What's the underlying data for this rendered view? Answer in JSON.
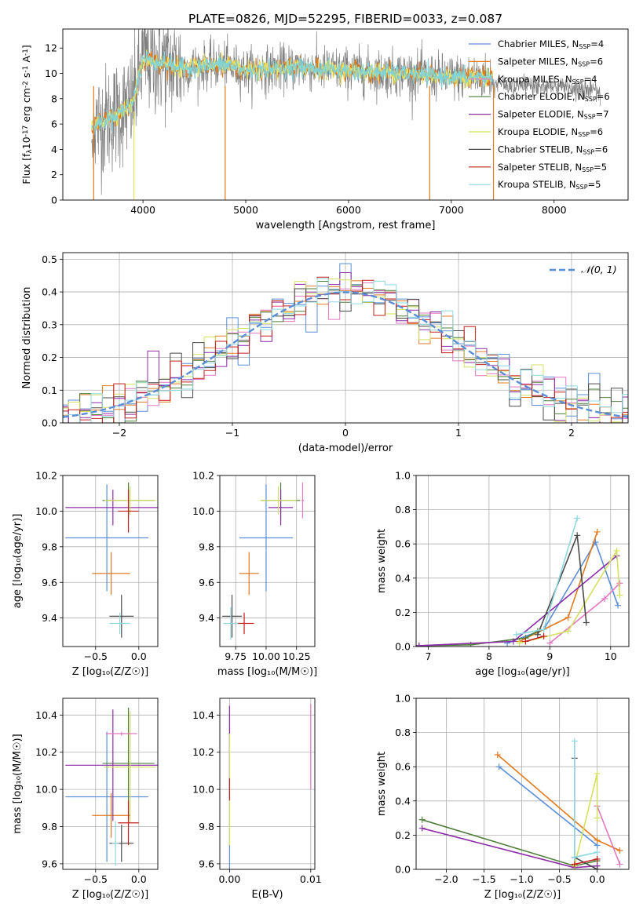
{
  "figure": {
    "title": "PLATE=0826, MJD=52295, FIBERID=0033, z=0.087"
  },
  "colors": {
    "observed": "#808080",
    "model_orange": "#e07b20",
    "model_cyan": "#7fd3d8",
    "model_yellow": "#e6e060",
    "gauss": "#5b8ed6"
  },
  "chart_data": [
    {
      "id": "spectrum",
      "type": "line",
      "title": "PLATE=0826, MJD=52295, FIBERID=0033, z=0.087",
      "xlabel": "wavelength [Angstrom, rest frame]",
      "ylabel_parts": [
        "Flux [f",
        "λ",
        "10",
        "-17",
        " erg cm",
        "-2",
        " s",
        "-1",
        " A",
        "-1",
        "]"
      ],
      "xlim": [
        3220,
        8720
      ],
      "ylim": [
        0,
        13.5
      ],
      "xticks": [
        4000,
        5000,
        6000,
        7000,
        8000
      ],
      "yticks": [
        0,
        2,
        4,
        6,
        8,
        10,
        12
      ],
      "legend_position": "upper-right",
      "legend": [
        {
          "label": "Chabrier MILES, N",
          "sub": "SSP",
          "tail": "=4",
          "color": "#5b8ed6"
        },
        {
          "label": "Salpeter MILES, N",
          "sub": "SSP",
          "tail": "=6",
          "color": "#e07b20"
        },
        {
          "label": "Kroupa MILES, N",
          "sub": "SSP",
          "tail": "=4",
          "color": "#e377c2"
        },
        {
          "label": "Chabrier ELODIE, N",
          "sub": "SSP",
          "tail": "=6",
          "color": "#4f7d3a"
        },
        {
          "label": "Salpeter ELODIE, N",
          "sub": "SSP",
          "tail": "=7",
          "color": "#8e2ca8"
        },
        {
          "label": "Kroupa ELODIE, N",
          "sub": "SSP",
          "tail": "=6",
          "color": "#d4e060"
        },
        {
          "label": "Chabrier STELIB, N",
          "sub": "SSP",
          "tail": "=6",
          "color": "#4a4a4a"
        },
        {
          "label": "Salpeter STELIB, N",
          "sub": "SSP",
          "tail": "=5",
          "color": "#c41e1e"
        },
        {
          "label": "Kroupa STELIB, N",
          "sub": "SSP",
          "tail": "=5",
          "color": "#8fd8e0"
        }
      ],
      "continuum_profile": {
        "wavelength": [
          3500,
          3700,
          3900,
          4000,
          4200,
          4400,
          4600,
          4800,
          5000,
          5200,
          5500,
          6000,
          6500,
          7000,
          7400
        ],
        "flux": [
          5.8,
          6.6,
          7.6,
          11.2,
          10.8,
          10.4,
          10.6,
          10.7,
          10.2,
          10.3,
          10.5,
          10.2,
          10.0,
          9.7,
          9.7
        ]
      },
      "model_extent": [
        3500,
        7400
      ],
      "observed_extent": [
        3500,
        8450
      ]
    },
    {
      "id": "residuals",
      "type": "histogram",
      "xlabel": "(data-model)/error",
      "ylabel": "Normed distribution",
      "xlim": [
        -2.5,
        2.5
      ],
      "ylim": [
        0,
        0.52
      ],
      "xticks": [
        -2,
        -1,
        0,
        1,
        2
      ],
      "xtick_labels": [
        "−2",
        "−1",
        "0",
        "1",
        "2"
      ],
      "yticks": [
        0.0,
        0.1,
        0.2,
        0.3,
        0.4,
        0.5
      ],
      "bin_width": 0.1,
      "legend_label": "𝒩(0, 1)",
      "legend_position": "upper-right"
    },
    {
      "id": "age-vs-Z",
      "type": "errorbar",
      "xlabel": "Z [log₁₀(Z/Z☉)]",
      "ylabel": "age  [log₁₀(age/yr)]",
      "xlim": [
        -0.88,
        0.22
      ],
      "ylim": [
        9.24,
        10.2
      ],
      "xticks": [
        -0.5,
        0.0
      ],
      "xtick_labels": [
        "−0.5",
        "0.0"
      ],
      "yticks": [
        9.4,
        9.6,
        9.8,
        10.0,
        10.2
      ],
      "points": [
        {
          "x": -0.37,
          "y": 9.85,
          "xerr": 0.48,
          "yerr": 0.3,
          "color": "#5b8ed6"
        },
        {
          "x": -0.32,
          "y": 9.65,
          "xerr": 0.22,
          "yerr": 0.12,
          "color": "#e07b20"
        },
        {
          "x": -0.12,
          "y": 10.06,
          "xerr": 0.3,
          "yerr": 0.1,
          "color": "#4f7d3a"
        },
        {
          "x": -0.3,
          "y": 10.02,
          "xerr": 0.55,
          "yerr": 0.1,
          "color": "#8e2ca8"
        },
        {
          "x": -0.1,
          "y": 10.06,
          "xerr": 0.3,
          "yerr": 0.08,
          "color": "#d4e060"
        },
        {
          "x": -0.2,
          "y": 9.41,
          "xerr": 0.14,
          "yerr": 0.12,
          "color": "#4a4a4a"
        },
        {
          "x": -0.12,
          "y": 10.0,
          "xerr": 0.12,
          "yerr": 0.12,
          "color": "#c41e1e"
        },
        {
          "x": -0.22,
          "y": 9.37,
          "xerr": 0.12,
          "yerr": 0.06,
          "color": "#8fd8e0"
        }
      ]
    },
    {
      "id": "age-vs-mass",
      "type": "errorbar",
      "xlabel": "mass [log₁₀(M/M☉)]",
      "ylabel": "",
      "xlim": [
        9.62,
        10.4
      ],
      "ylim": [
        9.24,
        10.2
      ],
      "xticks": [
        9.75,
        10.0,
        10.25
      ],
      "xtick_labels": [
        "9.75",
        "10.00",
        "10.25"
      ],
      "yticks": [
        9.4,
        9.6,
        9.8,
        10.0,
        10.2
      ],
      "points": [
        {
          "x": 10.0,
          "y": 9.85,
          "xerr": 0.22,
          "yerr": 0.3,
          "color": "#5b8ed6"
        },
        {
          "x": 9.86,
          "y": 9.65,
          "xerr": 0.08,
          "yerr": 0.12,
          "color": "#e07b20"
        },
        {
          "x": 10.12,
          "y": 10.06,
          "xerr": 0.16,
          "yerr": 0.1,
          "color": "#4f7d3a"
        },
        {
          "x": 10.12,
          "y": 10.02,
          "xerr": 0.1,
          "yerr": 0.1,
          "color": "#8e2ca8"
        },
        {
          "x": 10.1,
          "y": 10.06,
          "xerr": 0.15,
          "yerr": 0.08,
          "color": "#d4e060"
        },
        {
          "x": 9.72,
          "y": 9.41,
          "xerr": 0.08,
          "yerr": 0.12,
          "color": "#4a4a4a"
        },
        {
          "x": 9.82,
          "y": 9.37,
          "xerr": 0.08,
          "yerr": 0.06,
          "color": "#c41e1e"
        },
        {
          "x": 9.71,
          "y": 9.37,
          "xerr": 0.06,
          "yerr": 0.09,
          "color": "#8fd8e0"
        },
        {
          "x": 10.3,
          "y": 10.06,
          "xerr": 0.01,
          "yerr": 0.1,
          "color": "#e377c2"
        }
      ]
    },
    {
      "id": "weight-vs-age",
      "type": "line",
      "xlabel": "age  [log₁₀(age/yr)]",
      "ylabel": "mass weight",
      "xlim": [
        6.8,
        10.3
      ],
      "ylim": [
        0,
        1.0
      ],
      "xticks": [
        7,
        8,
        9,
        10
      ],
      "yticks": [
        0.0,
        0.2,
        0.4,
        0.6,
        0.8,
        1.0
      ],
      "series": [
        {
          "color": "#5b8ed6",
          "x": [
            8.3,
            8.9,
            9.75,
            10.12
          ],
          "y": [
            0.02,
            0.1,
            0.61,
            0.24
          ]
        },
        {
          "color": "#e07b20",
          "x": [
            8.5,
            9.3,
            9.78
          ],
          "y": [
            0.03,
            0.17,
            0.67
          ]
        },
        {
          "color": "#e377c2",
          "x": [
            9.0,
            9.9,
            10.15
          ],
          "y": [
            0.02,
            0.28,
            0.37
          ]
        },
        {
          "color": "#4f7d3a",
          "x": [
            6.85,
            7.7,
            8.6,
            8.8
          ],
          "y": [
            0.005,
            0.01,
            0.05,
            0.09
          ]
        },
        {
          "color": "#8e2ca8",
          "x": [
            6.85,
            8.4,
            10.1
          ],
          "y": [
            0.005,
            0.03,
            0.53
          ]
        },
        {
          "color": "#d4e060",
          "x": [
            8.5,
            9.3,
            10.1,
            10.15
          ],
          "y": [
            0.02,
            0.09,
            0.56,
            0.3
          ]
        },
        {
          "color": "#4a4a4a",
          "x": [
            8.8,
            9.45,
            9.6
          ],
          "y": [
            0.07,
            0.65,
            0.14
          ]
        },
        {
          "color": "#c41e1e",
          "x": [
            8.6,
            8.9
          ],
          "y": [
            0.03,
            0.06
          ]
        },
        {
          "color": "#8fd8e0",
          "x": [
            8.45,
            8.9,
            9.45
          ],
          "y": [
            0.07,
            0.1,
            0.75
          ]
        }
      ]
    },
    {
      "id": "mass-vs-Z",
      "type": "errorbar",
      "xlabel": "Z [log₁₀(Z/Z☉)]",
      "ylabel": "mass [log₁₀(M/M☉)]",
      "xlim": [
        -0.88,
        0.22
      ],
      "ylim": [
        9.57,
        10.49
      ],
      "xticks": [
        -0.5,
        0.0
      ],
      "xtick_labels": [
        "−0.5",
        "0.0"
      ],
      "yticks": [
        9.6,
        9.8,
        10.0,
        10.2,
        10.4
      ],
      "points": [
        {
          "x": -0.37,
          "y": 9.96,
          "xerr": 0.48,
          "yerr": 0.35,
          "color": "#5b8ed6"
        },
        {
          "x": -0.32,
          "y": 9.86,
          "xerr": 0.22,
          "yerr": 0.12,
          "color": "#e07b20"
        },
        {
          "x": -0.12,
          "y": 10.14,
          "xerr": 0.3,
          "yerr": 0.3,
          "color": "#4f7d3a"
        },
        {
          "x": -0.3,
          "y": 10.13,
          "xerr": 0.55,
          "yerr": 0.3,
          "color": "#8e2ca8"
        },
        {
          "x": -0.1,
          "y": 10.12,
          "xerr": 0.3,
          "yerr": 0.3,
          "color": "#d4e060"
        },
        {
          "x": -0.2,
          "y": 9.71,
          "xerr": 0.14,
          "yerr": 0.1,
          "color": "#4a4a4a"
        },
        {
          "x": -0.12,
          "y": 9.82,
          "xerr": 0.12,
          "yerr": 0.12,
          "color": "#c41e1e"
        },
        {
          "x": -0.27,
          "y": 9.71,
          "xerr": 0.04,
          "yerr": 0.12,
          "color": "#8fd8e0"
        },
        {
          "x": -0.2,
          "y": 10.3,
          "xerr": 0.18,
          "yerr": 0.01,
          "color": "#e377c2"
        }
      ]
    },
    {
      "id": "mass-vs-EBV",
      "type": "errorbar",
      "xlabel": "E(B-V)",
      "ylabel": "",
      "xlim": [
        -0.0012,
        0.0105
      ],
      "ylim": [
        9.57,
        10.49
      ],
      "xticks": [
        0.0,
        0.01
      ],
      "xtick_labels": [
        "0.00",
        "0.01"
      ],
      "yticks": [
        9.6,
        9.8,
        10.0,
        10.2,
        10.4
      ],
      "points": [
        {
          "x": 0.0,
          "y": 10.0,
          "xerr": 0.0,
          "yerr": 0.45,
          "color": "#5b8ed6"
        },
        {
          "x": 0.0,
          "y": 10.2,
          "xerr": 0.0,
          "yerr": 0.25,
          "color": "#8e2ca8"
        },
        {
          "x": 0.0,
          "y": 10.0,
          "xerr": 0.0,
          "yerr": 0.3,
          "color": "#d4e060"
        },
        {
          "x": 0.0,
          "y": 10.0,
          "xerr": 0.0,
          "yerr": 0.06,
          "color": "#c41e1e"
        },
        {
          "x": 0.01,
          "y": 10.23,
          "xerr": 0.0,
          "yerr": 0.23,
          "color": "#e377c2"
        }
      ]
    },
    {
      "id": "weight-vs-Z",
      "type": "line",
      "xlabel": "Z [log₁₀(Z/Z☉)]",
      "ylabel": "mass weight",
      "xlim": [
        -2.4,
        0.42
      ],
      "ylim": [
        0,
        1.0
      ],
      "xticks": [
        -2.0,
        -1.5,
        -1.0,
        -0.5,
        0.0
      ],
      "xtick_labels": [
        "−2.0",
        "−1.5",
        "−1.0",
        "−0.5",
        "0.0"
      ],
      "yticks": [
        0.0,
        0.2,
        0.4,
        0.6,
        0.8,
        1.0
      ],
      "series": [
        {
          "color": "#5b8ed6",
          "x": [
            -1.3,
            0.0
          ],
          "y": [
            0.6,
            0.14
          ]
        },
        {
          "color": "#e07b20",
          "x": [
            -1.32,
            0.0,
            0.3
          ],
          "y": [
            0.67,
            0.17,
            0.11
          ]
        },
        {
          "color": "#e377c2",
          "x": [
            0.0,
            0.3
          ],
          "y": [
            0.37,
            0.03
          ]
        },
        {
          "color": "#4f7d3a",
          "x": [
            -2.32,
            -0.3,
            0.0
          ],
          "y": [
            0.29,
            0.02,
            0.05
          ]
        },
        {
          "color": "#8e2ca8",
          "x": [
            -2.32,
            -0.3,
            0.0
          ],
          "y": [
            0.24,
            0.01,
            0.02
          ]
        },
        {
          "color": "#d4e060",
          "x": [
            -0.3,
            0.0,
            0.0
          ],
          "y": [
            0.02,
            0.56,
            0.3
          ]
        },
        {
          "color": "#4a4a4a",
          "x": [
            -0.3,
            -0.3,
            0.0
          ],
          "y": [
            0.65,
            0.07,
            0.0
          ]
        },
        {
          "color": "#c41e1e",
          "x": [
            -0.3,
            0.0
          ],
          "y": [
            0.03,
            0.06
          ]
        },
        {
          "color": "#8fd8e0",
          "x": [
            -0.3,
            -0.3,
            0.0
          ],
          "y": [
            0.75,
            0.07,
            0.1
          ]
        }
      ]
    }
  ]
}
